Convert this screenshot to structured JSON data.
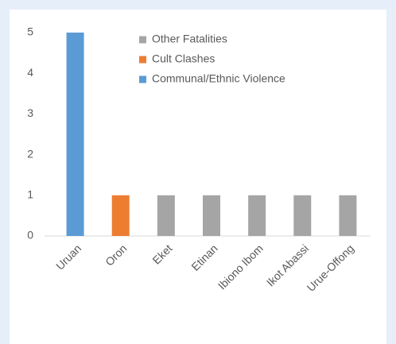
{
  "chart_data": {
    "type": "stacked_bar",
    "categories": [
      "Uruan",
      "Oron",
      "Eket",
      "Etinan",
      "Ibiono Ibom",
      "Ikot Abassi",
      "Urue-Offong"
    ],
    "series": [
      {
        "name": "Communal/Ethnic Violence",
        "color": "#5b9bd5",
        "values": [
          5,
          0,
          0,
          0,
          0,
          0,
          0
        ]
      },
      {
        "name": "Cult Clashes",
        "color": "#ed7d31",
        "values": [
          0,
          1,
          0,
          0,
          0,
          0,
          0
        ]
      },
      {
        "name": "Other Fatalities",
        "color": "#a5a5a5",
        "values": [
          0,
          0,
          1,
          1,
          1,
          1,
          1
        ]
      }
    ],
    "ylim": [
      0,
      5
    ],
    "yticks": [
      0,
      1,
      2,
      3,
      4,
      5
    ],
    "grid": false,
    "legend": "top-right"
  }
}
